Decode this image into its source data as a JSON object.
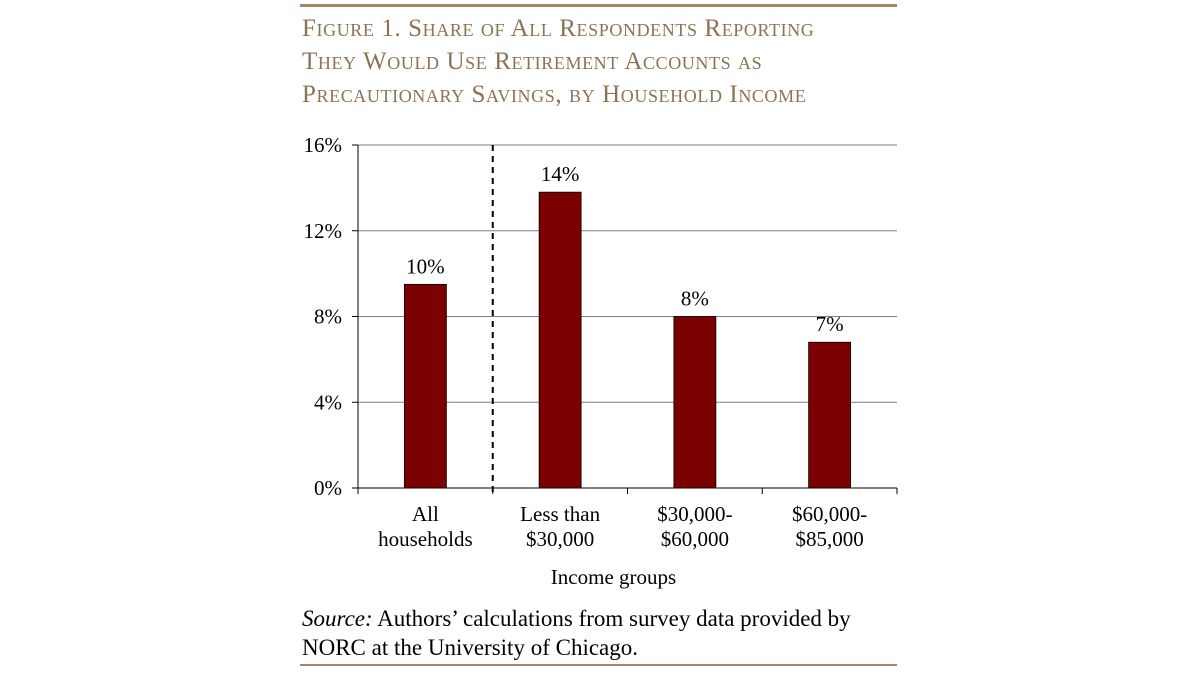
{
  "title_lines": [
    "Figure 1. Share of All Respondents Reporting",
    "They Would Use Retirement Accounts as",
    "Precautionary Savings, by Household Income"
  ],
  "source": {
    "label": "Source:",
    "text_lines": [
      "Authors’ calculations from survey data provided by",
      "NORC at the University of Chicago."
    ]
  },
  "colors": {
    "bar": "#7b0000",
    "title": "#8b7355",
    "rule": "#a08a6e",
    "grid": "#7f7f7f"
  },
  "chart_data": {
    "type": "bar",
    "title": "Share of All Respondents Reporting They Would Use Retirement Accounts as Precautionary Savings, by Household Income",
    "xlabel": "Income groups",
    "ylabel": "",
    "ylim": [
      0,
      16
    ],
    "yticks": [
      0,
      4,
      8,
      12,
      16
    ],
    "ytick_labels": [
      "0%",
      "4%",
      "8%",
      "12%",
      "16%"
    ],
    "grid": true,
    "legend": "none",
    "categories": [
      [
        "All",
        "households"
      ],
      [
        "Less than",
        "$30,000"
      ],
      [
        "$30,000-",
        "$60,000"
      ],
      [
        "$60,000-",
        "$85,000"
      ]
    ],
    "values": [
      9.5,
      13.8,
      8.0,
      6.8
    ],
    "data_labels": [
      "10%",
      "14%",
      "8%",
      "7%"
    ],
    "annotations": [
      "dashed divider between All households and income groups"
    ]
  }
}
